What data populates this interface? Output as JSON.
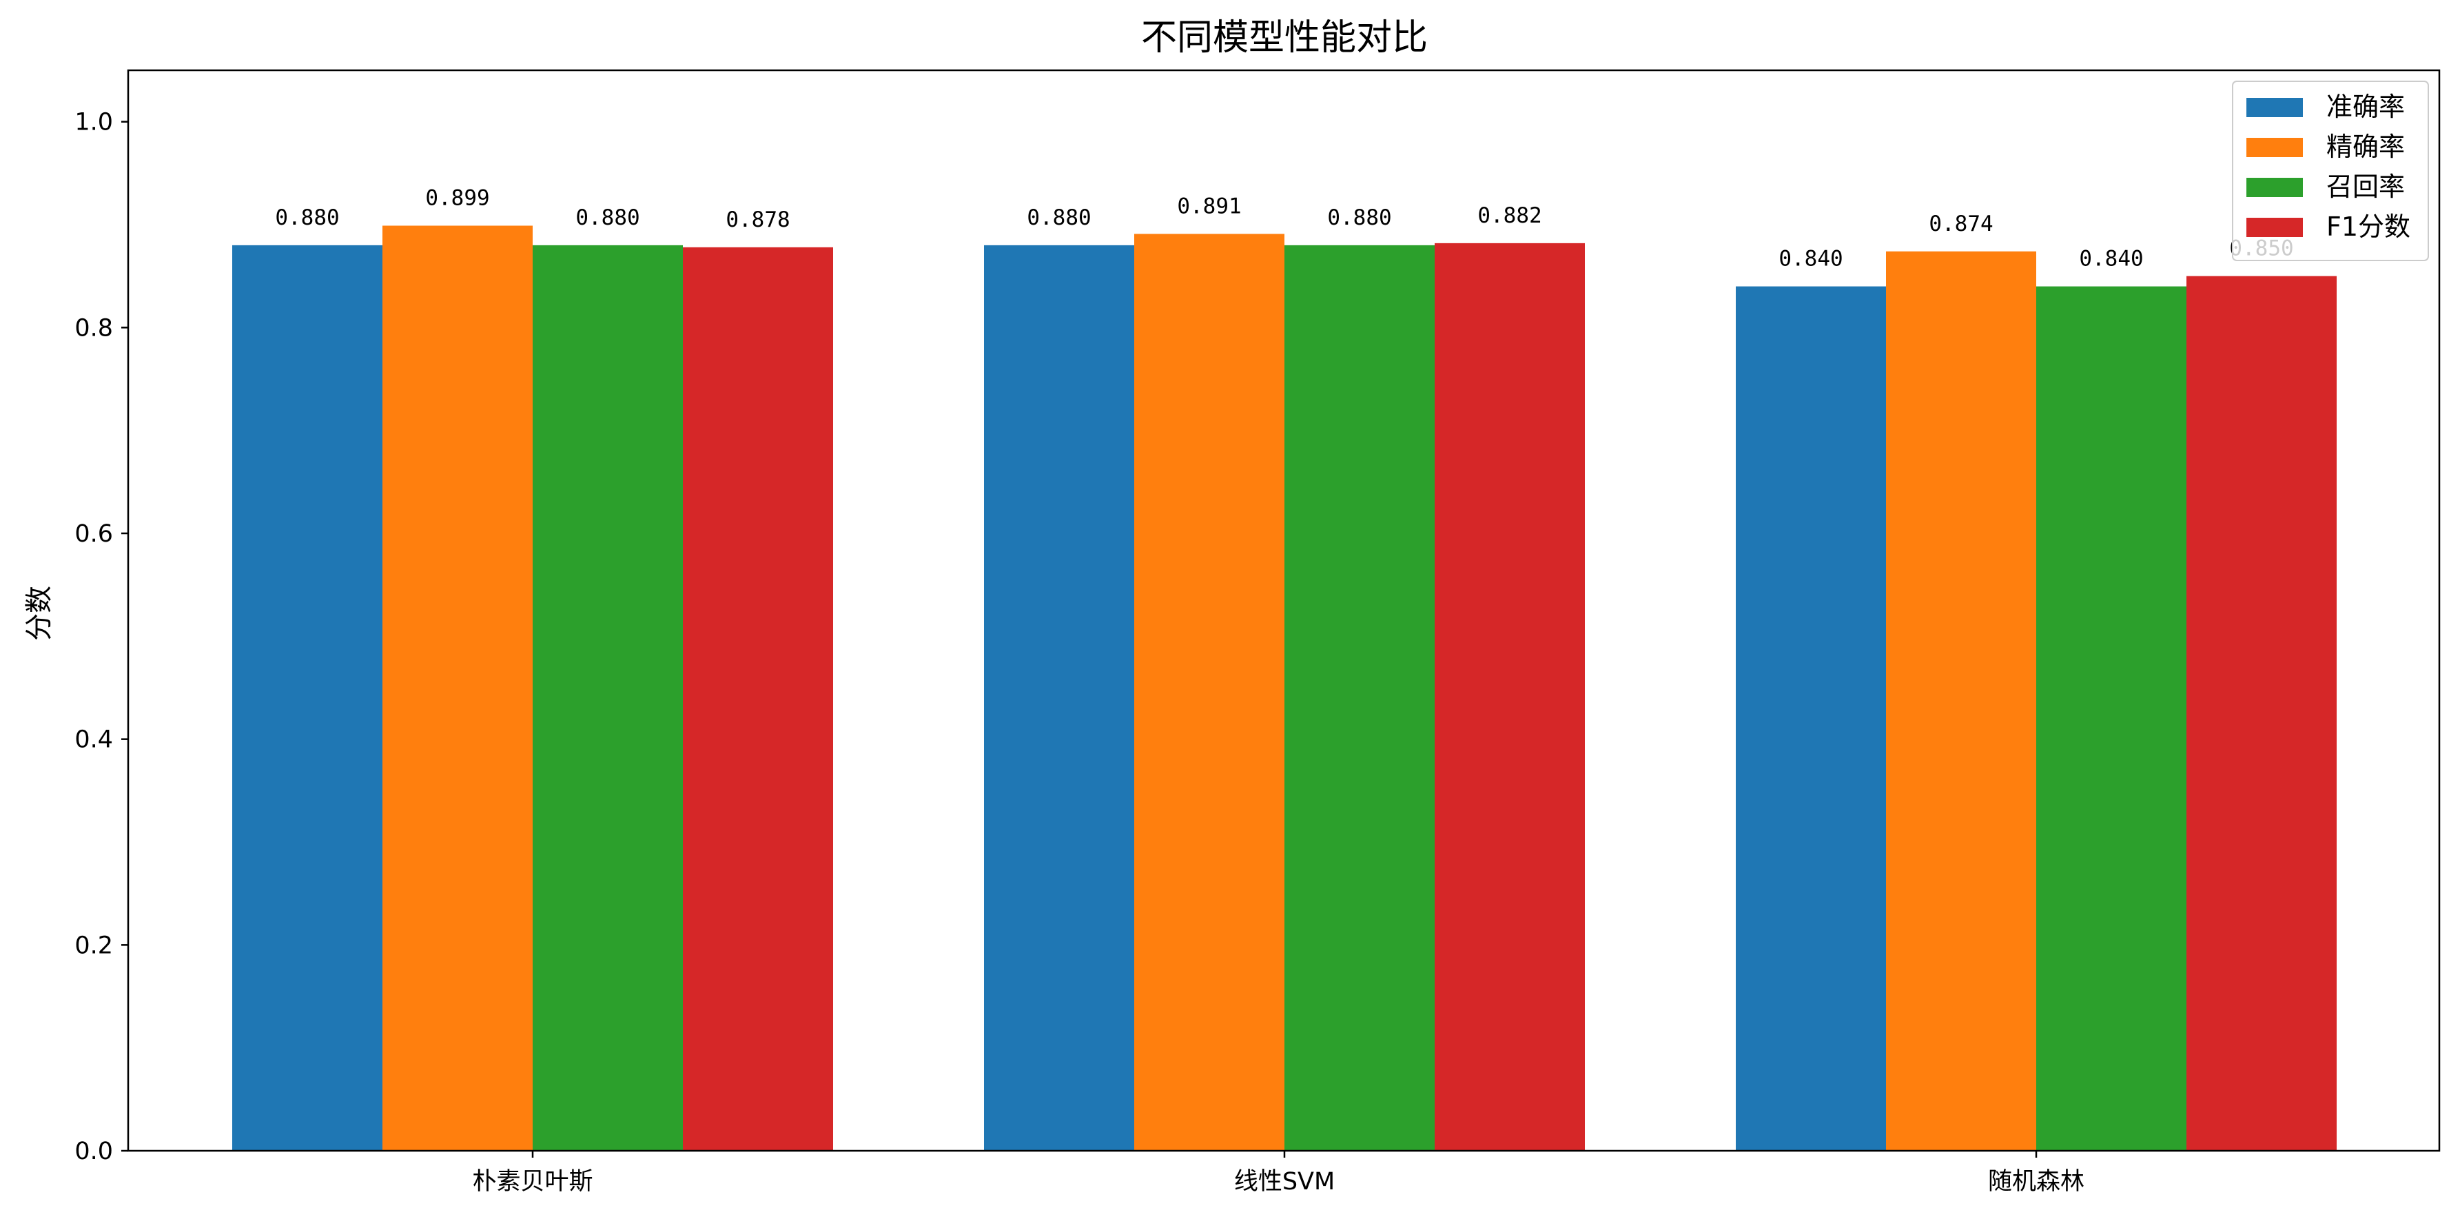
{
  "chart_data": {
    "type": "bar",
    "title": "不同模型性能对比",
    "xlabel": "",
    "ylabel": "分数",
    "categories": [
      "朴素贝叶斯",
      "线性SVM",
      "随机森林"
    ],
    "series": [
      {
        "name": "准确率",
        "color": "#1f77b4",
        "values": [
          0.88,
          0.88,
          0.84
        ]
      },
      {
        "name": "精确率",
        "color": "#ff7f0e",
        "values": [
          0.899,
          0.891,
          0.874
        ]
      },
      {
        "name": "召回率",
        "color": "#2ca02c",
        "values": [
          0.88,
          0.88,
          0.84
        ]
      },
      {
        "name": "F1分数",
        "color": "#d62728",
        "values": [
          0.878,
          0.882,
          0.85
        ]
      }
    ],
    "value_labels": [
      [
        "0.880",
        "0.880",
        "0.840"
      ],
      [
        "0.899",
        "0.891",
        "0.874"
      ],
      [
        "0.880",
        "0.880",
        "0.840"
      ],
      [
        "0.878",
        "0.882",
        "0.850"
      ]
    ],
    "yticks": [
      "0.0",
      "0.2",
      "0.4",
      "0.6",
      "0.8",
      "1.0"
    ],
    "ylim": [
      0,
      1.05
    ],
    "grid": false,
    "legend_position": "top-right"
  }
}
